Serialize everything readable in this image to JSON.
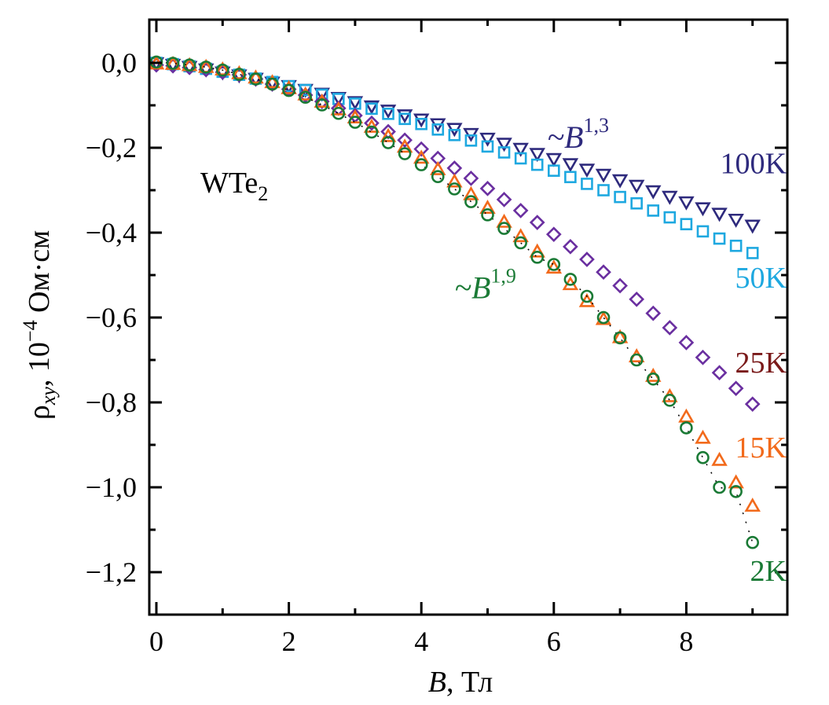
{
  "chart_data": {
    "type": "scatter",
    "title": "",
    "xlabel": "B, Тл",
    "xlabel_var": "B",
    "xlabel_unit": ", Тл",
    "ylabel": "ρxy, 10⁻⁴ Ом·см",
    "ylabel_parts": {
      "symbol": "ρ",
      "sub": "xy",
      "sep": ", 10",
      "exp": "−4",
      "unit": " Ом·см"
    },
    "xlim": [
      -0.1,
      9.6
    ],
    "ylim": [
      -1.3,
      0.1
    ],
    "xticks": [
      0,
      2,
      4,
      6,
      8
    ],
    "xtick_labels": [
      "0",
      "2",
      "4",
      "6",
      "8"
    ],
    "xminor": [
      1,
      3,
      5,
      7,
      9
    ],
    "yticks": [
      0.0,
      -0.2,
      -0.4,
      -0.6,
      -0.8,
      -1.0,
      -1.2
    ],
    "ytick_labels": [
      "0,0",
      "−0,2",
      "−0,4",
      "−0,6",
      "−0,8",
      "−1,0",
      "−1,2"
    ],
    "yminor": [
      -0.1,
      -0.3,
      -0.5,
      -0.7,
      -0.9,
      -1.1
    ],
    "grid": false,
    "sample_label": {
      "text": "WTe",
      "sub": "2"
    },
    "annotations": [
      {
        "prefix": "~B",
        "exp": "1,3",
        "color": "#2e2a7d",
        "x": 5.9,
        "y": -0.2
      },
      {
        "prefix": "~B",
        "exp": "1,9",
        "color": "#1a7a35",
        "x": 4.5,
        "y": -0.555
      }
    ],
    "x": [
      0,
      0.25,
      0.5,
      0.75,
      1,
      1.25,
      1.5,
      1.75,
      2,
      2.25,
      2.5,
      2.75,
      3,
      3.25,
      3.5,
      3.75,
      4,
      4.25,
      4.5,
      4.75,
      5,
      5.25,
      5.5,
      5.75,
      6,
      6.25,
      6.5,
      6.75,
      7,
      7.25,
      7.5,
      7.75,
      8,
      8.25,
      8.5,
      8.75,
      9
    ],
    "series": [
      {
        "name": "100K",
        "marker": "triangle-down",
        "color": "#2e2a7d",
        "label_color": "#2e2a7d",
        "label_pos": {
          "x": 9.3,
          "y": -0.26
        },
        "values": [
          0,
          -0.004,
          -0.009,
          -0.015,
          -0.022,
          -0.029,
          -0.037,
          -0.046,
          -0.054,
          -0.063,
          -0.072,
          -0.082,
          -0.092,
          -0.102,
          -0.112,
          -0.123,
          -0.133,
          -0.144,
          -0.155,
          -0.167,
          -0.178,
          -0.19,
          -0.202,
          -0.214,
          -0.226,
          -0.238,
          -0.251,
          -0.263,
          -0.276,
          -0.289,
          -0.302,
          -0.315,
          -0.328,
          -0.342,
          -0.355,
          -0.369,
          -0.383
        ]
      },
      {
        "name": "50K",
        "marker": "square",
        "color": "#1ea8e0",
        "label_color": "#1ea8e0",
        "label_pos": {
          "x": 9.3,
          "y": -0.53
        },
        "values": [
          0,
          -0.003,
          -0.008,
          -0.014,
          -0.021,
          -0.028,
          -0.037,
          -0.045,
          -0.055,
          -0.064,
          -0.075,
          -0.085,
          -0.096,
          -0.108,
          -0.12,
          -0.132,
          -0.144,
          -0.157,
          -0.17,
          -0.183,
          -0.197,
          -0.211,
          -0.225,
          -0.24,
          -0.254,
          -0.269,
          -0.285,
          -0.3,
          -0.316,
          -0.331,
          -0.348,
          -0.364,
          -0.38,
          -0.397,
          -0.414,
          -0.431,
          -0.448
        ]
      },
      {
        "name": "25K",
        "marker": "diamond",
        "color": "#6a2fa0",
        "label_color": "#7a1a1a",
        "label_pos": {
          "x": 9.3,
          "y": -0.73
        },
        "values": [
          -0.005,
          -0.007,
          -0.011,
          -0.016,
          -0.022,
          -0.028,
          -0.038,
          -0.05,
          -0.062,
          -0.076,
          -0.091,
          -0.107,
          -0.124,
          -0.142,
          -0.162,
          -0.182,
          -0.203,
          -0.225,
          -0.248,
          -0.272,
          -0.296,
          -0.322,
          -0.348,
          -0.376,
          -0.404,
          -0.433,
          -0.463,
          -0.493,
          -0.525,
          -0.557,
          -0.59,
          -0.624,
          -0.659,
          -0.694,
          -0.73,
          -0.767,
          -0.804
        ]
      },
      {
        "name": "15K",
        "marker": "triangle-up",
        "color": "#f26a1b",
        "label_color": "#f26a1b",
        "label_pos": {
          "x": 9.3,
          "y": -0.93
        },
        "values": [
          -0.002,
          -0.003,
          -0.006,
          -0.01,
          -0.016,
          -0.025,
          -0.035,
          -0.046,
          -0.06,
          -0.075,
          -0.092,
          -0.11,
          -0.129,
          -0.151,
          -0.173,
          -0.198,
          -0.224,
          -0.251,
          -0.28,
          -0.31,
          -0.342,
          -0.375,
          -0.409,
          -0.445,
          -0.483,
          -0.522,
          -0.562,
          -0.604,
          -0.647,
          -0.692,
          -0.738,
          -0.786,
          -0.834,
          -0.884,
          -0.936,
          -0.989,
          -1.044
        ]
      },
      {
        "name": "2K",
        "marker": "circle",
        "color": "#1a7a35",
        "label_color": "#1a7a35",
        "label_pos": {
          "x": 9.3,
          "y": -1.22
        },
        "values": [
          0.002,
          -0.001,
          -0.005,
          -0.01,
          -0.017,
          -0.027,
          -0.038,
          -0.05,
          -0.065,
          -0.081,
          -0.099,
          -0.119,
          -0.14,
          -0.163,
          -0.188,
          -0.214,
          -0.24,
          -0.268,
          -0.297,
          -0.327,
          -0.358,
          -0.39,
          -0.424,
          -0.458,
          -0.475,
          -0.51,
          -0.55,
          -0.6,
          -0.648,
          -0.7,
          -0.745,
          -0.795,
          -0.86,
          -0.93,
          -1.0,
          -1.01,
          -1.13
        ]
      }
    ]
  }
}
